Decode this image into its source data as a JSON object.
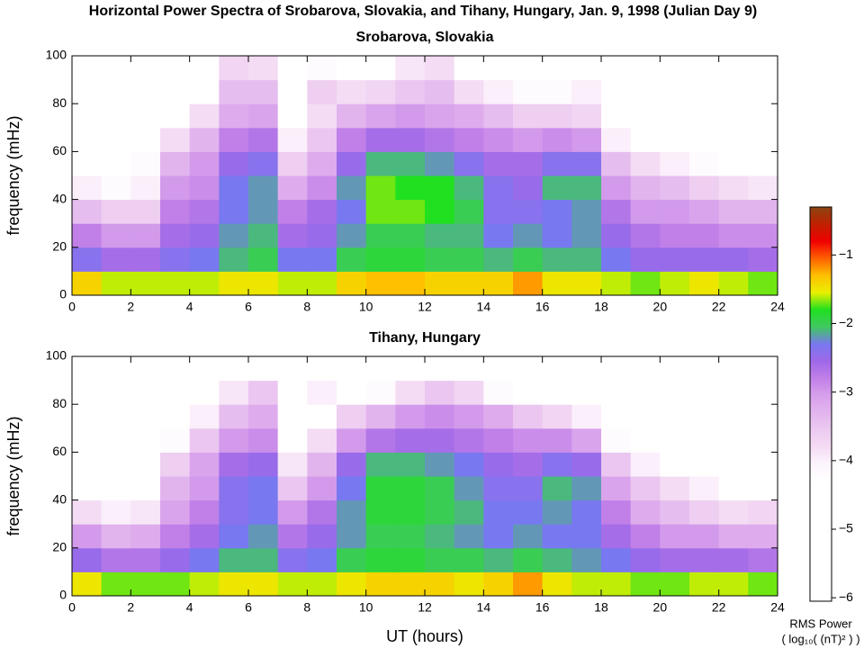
{
  "title": "Horizontal Power Spectra of Srobarova, Slovakia, and Tihany, Hungary, Jan. 9, 1998 (Julian Day 9)",
  "colorbar": {
    "label": [
      "RMS Power",
      "( log₁₀( (nT)² ) )"
    ],
    "zlim": [
      -6.05,
      -0.3
    ],
    "ticks": [
      {
        "value": -1,
        "label": "−1"
      },
      {
        "value": -2,
        "label": "−2"
      },
      {
        "value": -3,
        "label": "−3"
      },
      {
        "value": -4,
        "label": "−4"
      },
      {
        "value": -5,
        "label": "−5"
      },
      {
        "value": -6,
        "label": "−6"
      }
    ],
    "colormap": [
      "#ffffff",
      "#ffffff",
      "#ffffff",
      "#ffffff",
      "#ffffff",
      "#ffffff",
      "#ffffff",
      "#ffffff",
      "#fcf4fc",
      "#f4dcf4",
      "#eccaf0",
      "#e2b4ee",
      "#d8a0ec",
      "#c080e8",
      "#a068e8",
      "#7878f0",
      "#40c860",
      "#20e020",
      "#e8f000",
      "#ffc000",
      "#ff6000",
      "#f00000",
      "#c02000",
      "#8b4513"
    ]
  },
  "chart_data": [
    {
      "type": "heatmap",
      "title": "Srobarova, Slovakia",
      "ylabel": "frequency (mHz)",
      "x": [
        0,
        1,
        2,
        3,
        4,
        5,
        6,
        7,
        8,
        9,
        10,
        11,
        12,
        13,
        14,
        15,
        16,
        17,
        18,
        19,
        20,
        21,
        22,
        23,
        24
      ],
      "y": [
        0,
        10,
        20,
        30,
        40,
        50,
        60,
        70,
        80,
        90,
        100
      ],
      "xlim": [
        0,
        24
      ],
      "xticks": [
        0,
        2,
        4,
        6,
        8,
        10,
        12,
        14,
        16,
        18,
        20,
        22,
        24
      ],
      "ylim": [
        0,
        100
      ],
      "yticks": [
        0,
        20,
        40,
        60,
        80,
        100
      ],
      "z": [
        [
          -1.4,
          -1.6,
          -1.6,
          -1.6,
          -1.6,
          -1.5,
          -1.5,
          -1.6,
          -1.6,
          -1.4,
          -1.3,
          -1.3,
          -1.4,
          -1.4,
          -1.4,
          -1.2,
          -1.5,
          -1.5,
          -1.6,
          -1.7,
          -1.6,
          -1.5,
          -1.6,
          -1.7
        ],
        [
          -2.4,
          -2.6,
          -2.6,
          -2.4,
          -2.3,
          -2.1,
          -2.0,
          -2.3,
          -2.3,
          -2.0,
          -1.9,
          -1.9,
          -2.0,
          -2.0,
          -2.1,
          -2.0,
          -2.1,
          -2.1,
          -2.3,
          -2.5,
          -2.5,
          -2.5,
          -2.5,
          -2.6
        ],
        [
          -2.8,
          -3.0,
          -3.0,
          -2.6,
          -2.5,
          -2.2,
          -2.1,
          -2.6,
          -2.5,
          -2.2,
          -2.0,
          -2.0,
          -2.1,
          -2.1,
          -2.3,
          -2.2,
          -2.3,
          -2.2,
          -2.5,
          -2.7,
          -2.8,
          -2.8,
          -2.9,
          -2.9
        ],
        [
          -3.4,
          -3.6,
          -3.6,
          -2.8,
          -2.7,
          -2.3,
          -2.2,
          -2.8,
          -2.6,
          -2.3,
          -1.7,
          -1.7,
          -1.8,
          -2.0,
          -2.4,
          -2.4,
          -2.3,
          -2.2,
          -2.7,
          -3.0,
          -3.0,
          -3.1,
          -3.3,
          -3.3
        ],
        [
          -4.0,
          -4.2,
          -4.0,
          -3.0,
          -2.9,
          -2.3,
          -2.2,
          -3.2,
          -2.9,
          -2.2,
          -1.7,
          -1.8,
          -1.8,
          -2.1,
          -2.4,
          -2.5,
          -2.1,
          -2.1,
          -3.0,
          -3.3,
          -3.4,
          -3.6,
          -3.8,
          -3.9
        ],
        [
          -4.5,
          -4.5,
          -4.2,
          -3.3,
          -3.0,
          -2.5,
          -2.4,
          -3.6,
          -3.2,
          -2.5,
          -2.1,
          -2.1,
          -2.2,
          -2.4,
          -2.6,
          -2.6,
          -2.4,
          -2.4,
          -3.4,
          -3.8,
          -4.0,
          -4.2,
          -4.4,
          -4.5
        ],
        [
          -5.0,
          -4.8,
          -4.5,
          -3.8,
          -3.3,
          -2.8,
          -2.7,
          -4.0,
          -3.5,
          -2.8,
          -2.6,
          -2.6,
          -2.7,
          -2.8,
          -2.9,
          -3.0,
          -2.9,
          -3.0,
          -4.0,
          -4.3,
          -4.5,
          -4.7,
          -4.8,
          -5.0
        ],
        [
          -5.5,
          -5.2,
          -5.0,
          -4.5,
          -3.8,
          -3.2,
          -3.1,
          -4.5,
          -3.8,
          -3.3,
          -3.1,
          -3.0,
          -3.1,
          -3.2,
          -3.4,
          -3.6,
          -3.6,
          -3.7,
          -4.6,
          -4.9,
          -5.0,
          -5.2,
          -5.4,
          -5.5
        ],
        [
          -5.8,
          -5.6,
          -5.5,
          -5.0,
          -4.3,
          -3.4,
          -3.4,
          -5.0,
          -3.6,
          -3.8,
          -3.7,
          -3.5,
          -3.4,
          -3.8,
          -4.0,
          -4.2,
          -4.2,
          -4.0,
          -5.2,
          -5.4,
          -5.5,
          -5.6,
          -5.8,
          -5.8
        ],
        [
          -6.0,
          -6.0,
          -5.9,
          -5.6,
          -5.0,
          -3.7,
          -3.8,
          -5.6,
          -4.2,
          -4.4,
          -4.3,
          -3.9,
          -3.8,
          -4.4,
          -4.8,
          -5.0,
          -5.0,
          -4.6,
          -5.8,
          -5.9,
          -6.0,
          -6.0,
          -6.0,
          -6.0
        ]
      ]
    },
    {
      "type": "heatmap",
      "title": "Tihany, Hungary",
      "ylabel": "frequency (mHz)",
      "xlabel": "UT (hours)",
      "x": [
        0,
        1,
        2,
        3,
        4,
        5,
        6,
        7,
        8,
        9,
        10,
        11,
        12,
        13,
        14,
        15,
        16,
        17,
        18,
        19,
        20,
        21,
        22,
        23,
        24
      ],
      "y": [
        0,
        10,
        20,
        30,
        40,
        50,
        60,
        70,
        80,
        90,
        100
      ],
      "xlim": [
        0,
        24
      ],
      "xticks": [
        0,
        2,
        4,
        6,
        8,
        10,
        12,
        14,
        16,
        18,
        20,
        22,
        24
      ],
      "ylim": [
        0,
        100
      ],
      "yticks": [
        0,
        20,
        40,
        60,
        80,
        100
      ],
      "z": [
        [
          -1.5,
          -1.7,
          -1.7,
          -1.7,
          -1.6,
          -1.5,
          -1.5,
          -1.6,
          -1.6,
          -1.5,
          -1.4,
          -1.4,
          -1.4,
          -1.5,
          -1.4,
          -1.2,
          -1.5,
          -1.6,
          -1.6,
          -1.7,
          -1.7,
          -1.6,
          -1.6,
          -1.7
        ],
        [
          -2.5,
          -2.7,
          -2.7,
          -2.5,
          -2.3,
          -2.1,
          -2.1,
          -2.4,
          -2.3,
          -2.0,
          -1.9,
          -1.9,
          -2.0,
          -2.0,
          -2.1,
          -2.0,
          -2.1,
          -2.2,
          -2.3,
          -2.5,
          -2.6,
          -2.6,
          -2.6,
          -2.7
        ],
        [
          -3.0,
          -3.3,
          -3.2,
          -2.8,
          -2.6,
          -2.3,
          -2.2,
          -2.7,
          -2.5,
          -2.2,
          -2.0,
          -2.0,
          -2.1,
          -2.2,
          -2.3,
          -2.2,
          -2.3,
          -2.3,
          -2.6,
          -2.8,
          -3.0,
          -3.0,
          -3.2,
          -3.2
        ],
        [
          -3.8,
          -4.0,
          -3.9,
          -3.1,
          -2.8,
          -2.4,
          -2.3,
          -3.0,
          -2.7,
          -2.2,
          -1.9,
          -1.9,
          -2.0,
          -2.1,
          -2.3,
          -2.3,
          -2.2,
          -2.3,
          -2.8,
          -3.2,
          -3.4,
          -3.6,
          -3.8,
          -3.7
        ],
        [
          -4.5,
          -4.6,
          -4.4,
          -3.3,
          -3.0,
          -2.4,
          -2.3,
          -3.5,
          -3.0,
          -2.3,
          -1.9,
          -1.9,
          -2.0,
          -2.2,
          -2.4,
          -2.4,
          -2.1,
          -2.2,
          -3.1,
          -3.5,
          -3.8,
          -4.0,
          -4.3,
          -4.3
        ],
        [
          -5.0,
          -5.0,
          -4.7,
          -3.6,
          -3.1,
          -2.6,
          -2.5,
          -3.9,
          -3.3,
          -2.5,
          -2.1,
          -2.1,
          -2.2,
          -2.3,
          -2.5,
          -2.6,
          -2.4,
          -2.5,
          -3.5,
          -4.0,
          -4.3,
          -4.5,
          -4.8,
          -4.8
        ],
        [
          -5.5,
          -5.4,
          -5.0,
          -4.2,
          -3.5,
          -3.0,
          -2.9,
          -4.5,
          -3.8,
          -3.0,
          -2.7,
          -2.6,
          -2.6,
          -2.7,
          -2.8,
          -2.9,
          -2.9,
          -3.1,
          -4.2,
          -4.6,
          -4.9,
          -5.0,
          -5.3,
          -5.4
        ],
        [
          -5.9,
          -5.8,
          -5.5,
          -4.8,
          -4.0,
          -3.4,
          -3.2,
          -5.0,
          -4.3,
          -3.6,
          -3.3,
          -3.0,
          -2.9,
          -3.0,
          -3.2,
          -3.5,
          -3.7,
          -4.0,
          -5.0,
          -5.3,
          -5.5,
          -5.7,
          -5.8,
          -5.9
        ],
        [
          -6.0,
          -6.0,
          -5.8,
          -5.4,
          -4.8,
          -3.9,
          -3.5,
          -5.5,
          -4.0,
          -4.5,
          -4.2,
          -3.8,
          -3.5,
          -3.7,
          -4.2,
          -4.6,
          -4.8,
          -5.0,
          -5.6,
          -5.8,
          -5.9,
          -6.0,
          -6.0,
          -6.0
        ],
        [
          -6.0,
          -6.0,
          -6.0,
          -5.8,
          -5.5,
          -4.8,
          -4.6,
          -5.9,
          -4.6,
          -5.4,
          -5.2,
          -5.0,
          -4.8,
          -5.0,
          -5.3,
          -5.6,
          -5.7,
          -5.8,
          -6.0,
          -6.0,
          -6.0,
          -6.0,
          -6.0,
          -6.0
        ]
      ]
    }
  ]
}
